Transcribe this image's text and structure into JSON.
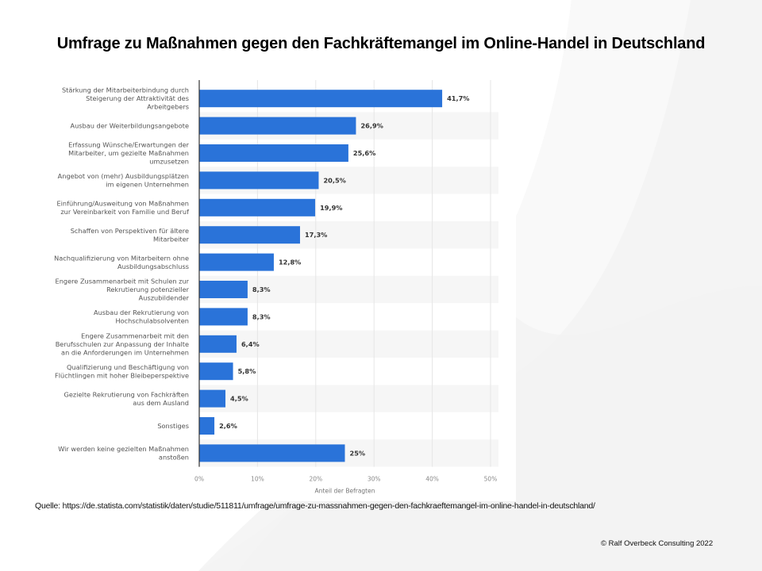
{
  "slide": {
    "title": "Umfrage zu Maßnahmen gegen den Fachkräftemangel im Online-Handel in Deutschland",
    "source": "Quelle: https://de.statista.com/statistik/daten/studie/511811/umfrage/umfrage-zu-massnahmen-gegen-den-fachkraeftemangel-im-online-handel-in-deutschland/",
    "copyright": "© Ralf Overbeck Consulting 2022"
  },
  "colors": {
    "bar": "#2a73d9",
    "stripe": "#f6f6f6",
    "grid": "#e6e6e6",
    "axis": "#333333"
  },
  "chart_data": {
    "type": "bar",
    "orientation": "horizontal",
    "title": "",
    "xlabel": "Anteil der Befragten",
    "ylabel": "",
    "xlim": [
      0,
      50
    ],
    "grid": true,
    "legend": "none",
    "ticks": [
      "0%",
      "10%",
      "20%",
      "30%",
      "40%",
      "50%"
    ],
    "tick_values": [
      0,
      10,
      20,
      30,
      40,
      50
    ],
    "categories": [
      [
        "Stärkung der Mitarbeiterbindung durch",
        "Steigerung der Attraktivität des",
        "Arbeitgebers"
      ],
      [
        "Ausbau der Weiterbildungsangebote"
      ],
      [
        "Erfassung Wünsche/Erwartungen der",
        "Mitarbeiter, um gezielte Maßnahmen",
        "umzusetzen"
      ],
      [
        "Angebot von (mehr) Ausbildungsplätzen",
        "im eigenen Unternehmen"
      ],
      [
        "Einführung/Ausweitung von Maßnahmen",
        "zur Vereinbarkeit von Familie und Beruf"
      ],
      [
        "Schaffen von Perspektiven für ältere",
        "Mitarbeiter"
      ],
      [
        "Nachqualifizierung von Mitarbeitern ohne",
        "Ausbildungsabschluss"
      ],
      [
        "Engere Zusammenarbeit mit Schulen zur",
        "Rekrutierung potenzieller",
        "Auszubildender"
      ],
      [
        "Ausbau der Rekrutierung von",
        "Hochschulabsolventen"
      ],
      [
        "Engere Zusammenarbeit mit den",
        "Berufsschulen zur Anpassung der Inhalte",
        "an die Anforderungen im Unternehmen"
      ],
      [
        "Qualifizierung und Beschäftigung von",
        "Flüchtlingen mit hoher Bleibeperspektive"
      ],
      [
        "Gezielte Rekrutierung von Fachkräften",
        "aus dem Ausland"
      ],
      [
        "Sonstiges"
      ],
      [
        "Wir werden keine gezielten Maßnahmen",
        "anstoßen"
      ]
    ],
    "values": [
      41.7,
      26.9,
      25.6,
      20.5,
      19.9,
      17.3,
      12.8,
      8.3,
      8.3,
      6.4,
      5.8,
      4.5,
      2.6,
      25
    ],
    "value_labels": [
      "41,7%",
      "26,9%",
      "25,6%",
      "20,5%",
      "19,9%",
      "17,3%",
      "12,8%",
      "8,3%",
      "8,3%",
      "6,4%",
      "5,8%",
      "4,5%",
      "2,6%",
      "25%"
    ]
  }
}
